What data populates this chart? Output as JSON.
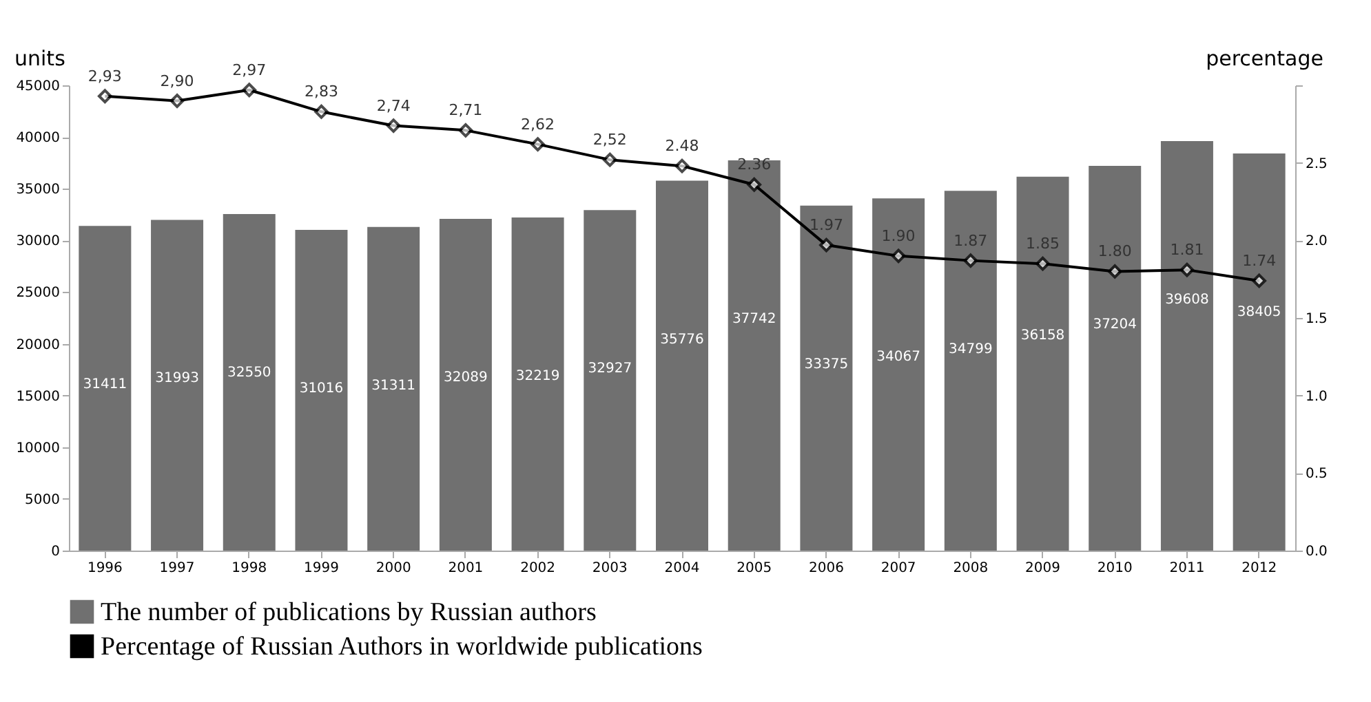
{
  "chart_data": {
    "type": "bar",
    "categories": [
      "1996",
      "1997",
      "1998",
      "1999",
      "2000",
      "2001",
      "2002",
      "2003",
      "2004",
      "2005",
      "2006",
      "2007",
      "2008",
      "2009",
      "2010",
      "2011",
      "2012"
    ],
    "series": [
      {
        "name": "The number of publications by Russian authors",
        "color": "#707070",
        "values": [
          31411,
          31993,
          32550,
          31016,
          31311,
          32089,
          32219,
          32927,
          35776,
          37742,
          33375,
          34067,
          34799,
          36158,
          37204,
          39608,
          38405
        ]
      },
      {
        "name": "Percentage of Russian Authors in worldwide publications",
        "type": "line",
        "axis": "y2",
        "color": "#000000",
        "marker": "diamond",
        "values": [
          2.93,
          2.9,
          2.97,
          2.83,
          2.74,
          2.71,
          2.62,
          2.52,
          2.48,
          2.36,
          1.97,
          1.9,
          1.87,
          1.85,
          1.8,
          1.81,
          1.74
        ],
        "value_labels": [
          "2,93",
          "2,90",
          "2,97",
          "2,83",
          "2,74",
          "2,71",
          "2,62",
          "2,52",
          "2.48",
          "2.36",
          "1.97",
          "1.90",
          "1.87",
          "1.85",
          "1.80",
          "1.81",
          "1.74"
        ]
      }
    ],
    "ylabel": "units",
    "y2label": "percentage",
    "ylim": [
      0,
      45000
    ],
    "yticks": [
      0,
      5000,
      10000,
      15000,
      20000,
      25000,
      30000,
      35000,
      40000,
      45000
    ],
    "y2lim": [
      0,
      3.0
    ],
    "y2ticks": [
      {
        "value": 0,
        "label": "0.0"
      },
      {
        "value": 0.5,
        "label": "0.5"
      },
      {
        "value": 1,
        "label": "1.0"
      },
      {
        "value": 1.5,
        "label": "1.5"
      },
      {
        "value": 2,
        "label": "2.0"
      },
      {
        "value": 2.5,
        "label": "2.5"
      },
      {
        "value": 3,
        "label": null
      }
    ],
    "data_labels": true,
    "legend": "bottom",
    "grid": false
  }
}
